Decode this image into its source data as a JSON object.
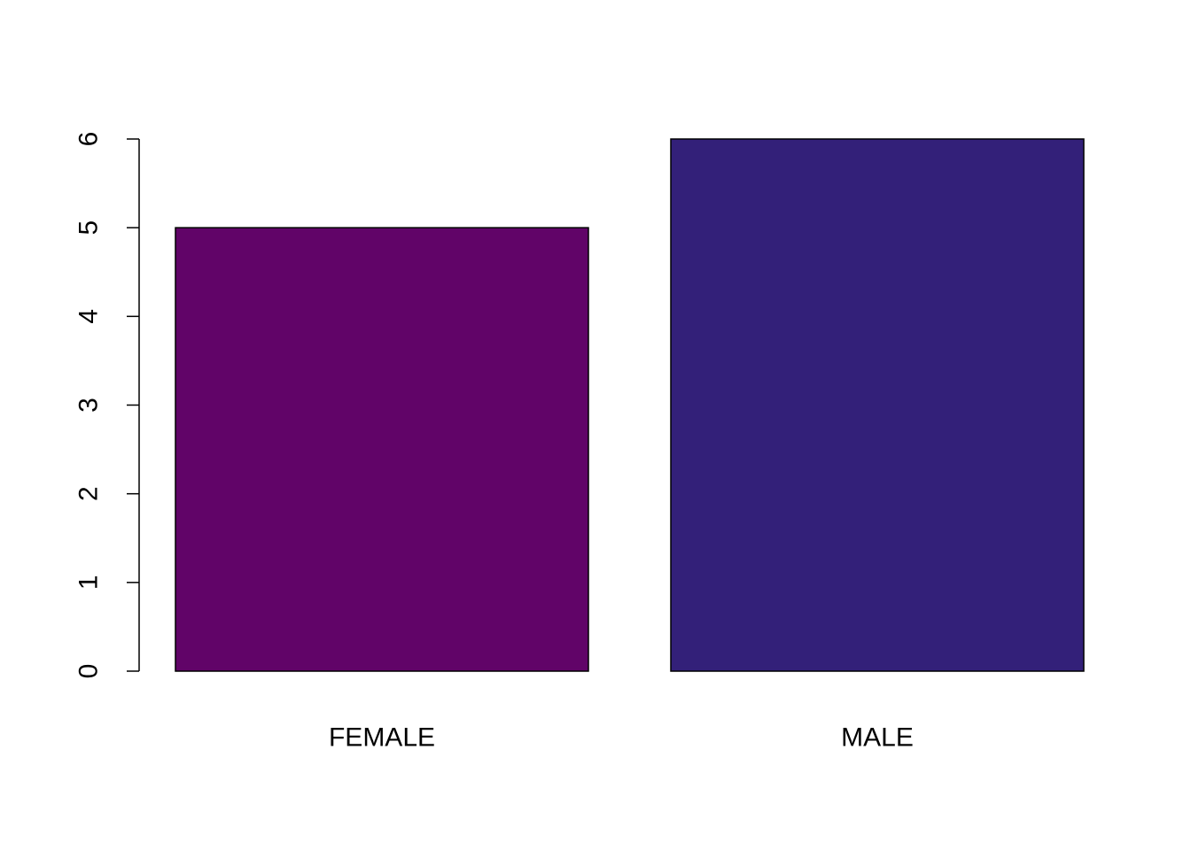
{
  "chart_data": {
    "type": "bar",
    "categories": [
      "FEMALE",
      "MALE"
    ],
    "values": [
      5,
      6
    ],
    "colors": [
      "#610468",
      "#332079"
    ],
    "title": "",
    "xlabel": "",
    "ylabel": "",
    "ylim": [
      0,
      6
    ],
    "yticks": [
      0,
      1,
      2,
      3,
      4,
      5,
      6
    ],
    "ytick_labels": [
      "0",
      "1",
      "2",
      "3",
      "4",
      "5",
      "6"
    ],
    "grid": false,
    "legend": "none"
  }
}
